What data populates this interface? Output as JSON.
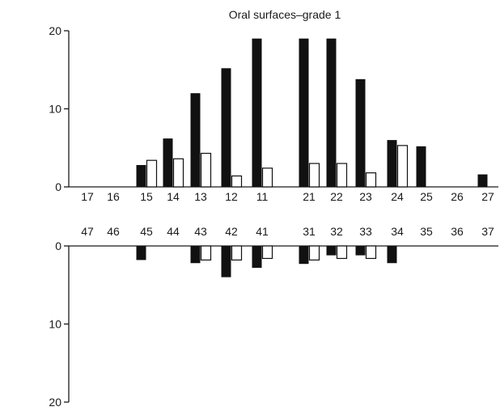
{
  "chart_data": {
    "type": "bar",
    "title": "Oral surfaces–grade 1",
    "upper": {
      "categories": [
        "17",
        "16",
        "15",
        "14",
        "13",
        "12",
        "11",
        "21",
        "22",
        "23",
        "24",
        "25",
        "26",
        "27"
      ],
      "series": [
        {
          "values": [
            0,
            0,
            2.8,
            6.2,
            12,
            15.2,
            19,
            19,
            19,
            13.8,
            6,
            5.2,
            0,
            1.6
          ]
        },
        {
          "values": [
            0,
            0,
            3.4,
            3.6,
            4.3,
            1.4,
            2.4,
            3,
            3,
            1.8,
            5.3,
            0,
            0,
            0
          ]
        }
      ],
      "yticks": [
        0,
        10,
        20
      ],
      "ylim": [
        0,
        20
      ]
    },
    "lower": {
      "categories": [
        "47",
        "46",
        "45",
        "44",
        "43",
        "42",
        "41",
        "31",
        "32",
        "33",
        "34",
        "35",
        "36",
        "37"
      ],
      "series": [
        {
          "values": [
            0,
            0,
            1.8,
            0,
            2.2,
            4,
            2.8,
            2.3,
            1.2,
            1.2,
            2.2,
            0,
            0,
            0
          ]
        },
        {
          "values": [
            0,
            0,
            0,
            0,
            1.8,
            1.8,
            1.6,
            1.8,
            1.6,
            1.6,
            0,
            0,
            0,
            0
          ]
        }
      ],
      "yticks": [
        0,
        10,
        20
      ],
      "ylim": [
        0,
        20
      ],
      "direction": "downward"
    },
    "colors": {
      "series1": "#111111",
      "series2": "#ffffff"
    }
  }
}
